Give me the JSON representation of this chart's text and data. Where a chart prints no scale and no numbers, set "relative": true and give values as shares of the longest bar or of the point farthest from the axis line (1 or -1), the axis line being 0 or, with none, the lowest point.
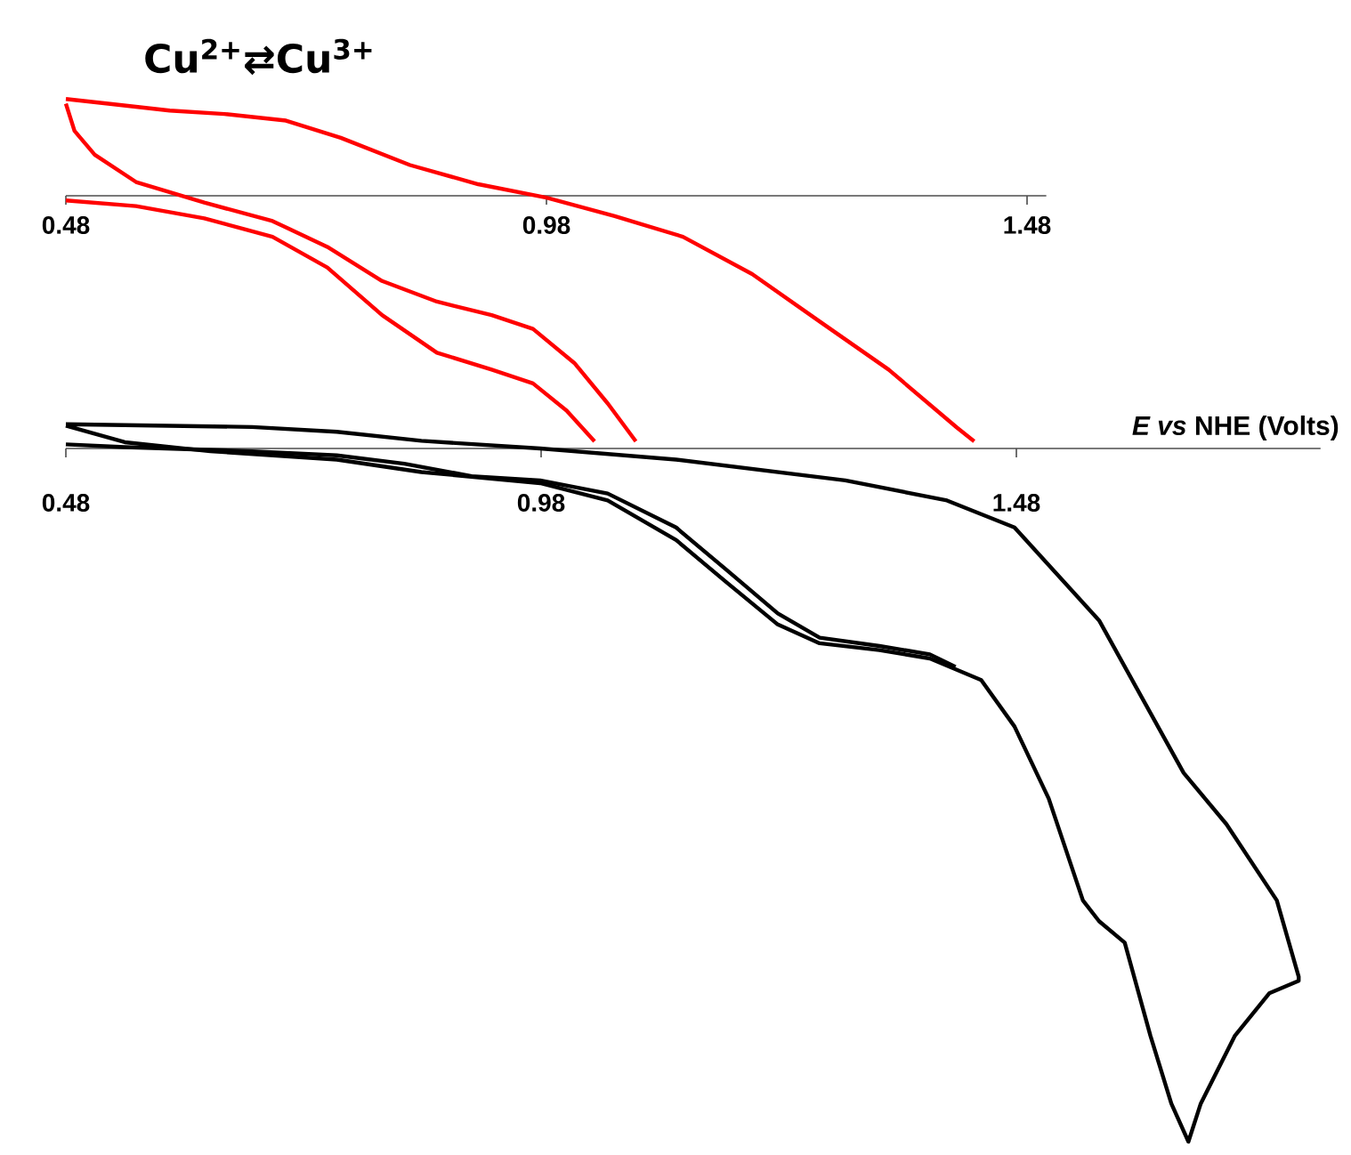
{
  "chart_data": [
    {
      "type": "line",
      "title": "Cu$^{2+}$⇄Cu$^{3+}$",
      "relative": true,
      "xlim": [
        0.48,
        1.5
      ],
      "xticks": [
        0.48,
        0.98,
        1.48
      ],
      "marker": "none",
      "line_style": "solid",
      "series": [
        {
          "color": "#ff0000",
          "x": [
            0.48,
            0.524,
            0.588,
            0.645,
            0.709,
            0.766,
            0.838,
            0.909,
            0.98,
            1.051,
            1.122,
            1.194,
            1.265,
            1.336,
            1.407,
            1.425
          ],
          "values": [
            0.394,
            0.375,
            0.347,
            0.333,
            0.306,
            0.236,
            0.125,
            0.047,
            -0.008,
            -0.083,
            -0.167,
            -0.319,
            -0.514,
            -0.708,
            -0.944,
            -1.0
          ]
        },
        {
          "color": "#ff0000",
          "x": [
            0.48,
            0.489,
            0.51,
            0.553,
            0.624,
            0.695,
            0.752,
            0.809,
            0.866,
            0.923,
            0.966,
            1.009,
            1.044,
            1.073
          ],
          "values": [
            0.375,
            0.264,
            0.167,
            0.056,
            -0.028,
            -0.103,
            -0.208,
            -0.347,
            -0.431,
            -0.486,
            -0.542,
            -0.681,
            -0.847,
            -1.0
          ]
        },
        {
          "color": "#ff0000",
          "x": [
            0.48,
            0.553,
            0.624,
            0.695,
            0.752,
            0.809,
            0.866,
            0.923,
            0.966,
            1.001,
            1.03
          ],
          "values": [
            -0.019,
            -0.042,
            -0.092,
            -0.167,
            -0.292,
            -0.486,
            -0.639,
            -0.708,
            -0.764,
            -0.875,
            -1.0
          ]
        }
      ]
    },
    {
      "type": "line",
      "xlabel": "*E vs* NHE (Volts)",
      "relative": true,
      "xlim": [
        0.48,
        1.8
      ],
      "xticks": [
        0.48,
        0.98,
        1.48
      ],
      "marker": "none",
      "line_style": "solid",
      "series": [
        {
          "color": "#000000",
          "x": [
            0.48,
            0.676,
            0.765,
            0.854,
            0.979,
            1.122,
            1.3,
            1.407,
            1.478,
            1.567,
            1.656,
            1.701,
            1.754,
            1.777,
            1.777,
            1.746,
            1.71,
            1.674,
            1.661,
            1.643,
            1.621,
            1.594,
            1.567,
            1.55,
            1.514,
            1.478,
            1.443,
            1.389,
            1.336,
            1.273,
            1.229,
            1.175,
            1.122,
            1.05,
            0.979,
            0.854,
            0.765,
            0.632,
            0.542,
            0.48
          ],
          "values": [
            0.035,
            0.031,
            0.024,
            0.011,
            0,
            -0.016,
            -0.046,
            -0.075,
            -0.114,
            -0.248,
            -0.468,
            -0.542,
            -0.652,
            -0.762,
            -0.768,
            -0.786,
            -0.847,
            -0.945,
            -1,
            -0.945,
            -0.847,
            -0.713,
            -0.682,
            -0.652,
            -0.505,
            -0.401,
            -0.334,
            -0.303,
            -0.291,
            -0.281,
            -0.254,
            -0.193,
            -0.132,
            -0.075,
            -0.05,
            -0.034,
            -0.016,
            -0.004,
            0.009,
            0.033
          ]
        },
        {
          "color": "#000000",
          "x": [
            1.416,
            1.389,
            1.336,
            1.273,
            1.229,
            1.175,
            1.122,
            1.05,
            0.979,
            0.907,
            0.836,
            0.765,
            0.676,
            0.542,
            0.48
          ],
          "values": [
            -0.315,
            -0.297,
            -0.285,
            -0.273,
            -0.238,
            -0.175,
            -0.114,
            -0.065,
            -0.046,
            -0.04,
            -0.022,
            -0.01,
            -0.004,
            0.002,
            0.006
          ]
        }
      ]
    }
  ]
}
